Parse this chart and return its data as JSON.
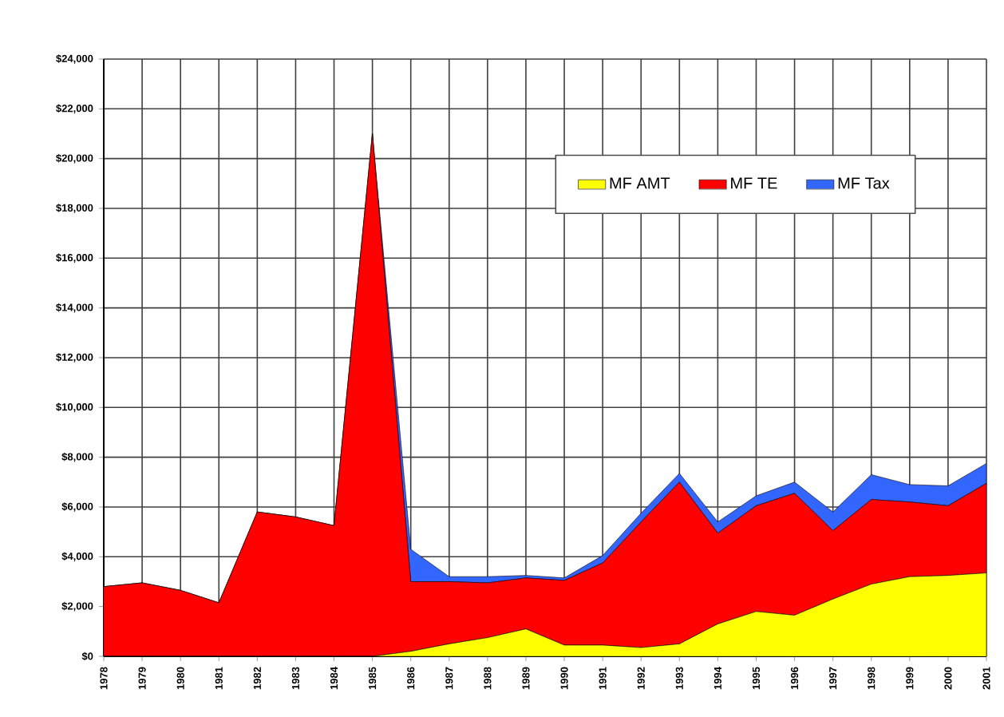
{
  "chart_data": {
    "type": "area",
    "stacked": true,
    "categories": [
      "1978",
      "1979",
      "1980",
      "1981",
      "1982",
      "1983",
      "1984",
      "1985",
      "1986",
      "1987",
      "1988",
      "1989",
      "1990",
      "1991",
      "1992",
      "1993",
      "1994",
      "1995",
      "1996",
      "1997",
      "1998",
      "1999",
      "2000",
      "2001"
    ],
    "series": [
      {
        "name": "MF AMT",
        "color": "#ffff00",
        "values": [
          0,
          0,
          0,
          0,
          0,
          0,
          0,
          0,
          200,
          500,
          750,
          1100,
          450,
          450,
          350,
          500,
          1300,
          1800,
          1650,
          2300,
          2900,
          3200,
          3250,
          3350
        ]
      },
      {
        "name": "MF TE",
        "color": "#ff0000",
        "values": [
          2800,
          2950,
          2650,
          2150,
          5800,
          5600,
          5250,
          21000,
          2800,
          2500,
          2200,
          2050,
          2600,
          3300,
          5050,
          6500,
          3650,
          4250,
          4900,
          2750,
          3400,
          3000,
          2800,
          3600
        ]
      },
      {
        "name": "MF Tax",
        "color": "#3366ff",
        "values": [
          0,
          0,
          0,
          0,
          0,
          0,
          0,
          0,
          1300,
          200,
          250,
          100,
          100,
          300,
          350,
          350,
          450,
          400,
          450,
          750,
          1000,
          700,
          800,
          800
        ]
      }
    ],
    "ylim": [
      0,
      24000
    ],
    "yticks": [
      {
        "value": 0,
        "label": "$0"
      },
      {
        "value": 2000,
        "label": "$2,000"
      },
      {
        "value": 4000,
        "label": "$4,000"
      },
      {
        "value": 6000,
        "label": "$6,000"
      },
      {
        "value": 8000,
        "label": "$8,000"
      },
      {
        "value": 10000,
        "label": "$10,000"
      },
      {
        "value": 12000,
        "label": "$12,000"
      },
      {
        "value": 14000,
        "label": "$14,000"
      },
      {
        "value": 16000,
        "label": "$16,000"
      },
      {
        "value": 18000,
        "label": "$18,000"
      },
      {
        "value": 20000,
        "label": "$20,000"
      },
      {
        "value": 22000,
        "label": "$22,000"
      },
      {
        "value": 24000,
        "label": "$24,000"
      }
    ],
    "grid": true,
    "legend": "top right"
  }
}
